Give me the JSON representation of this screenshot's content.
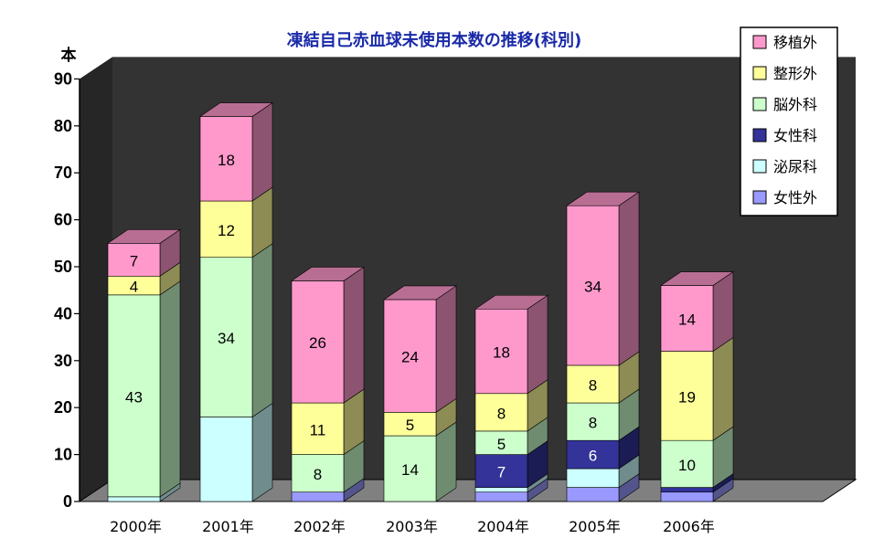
{
  "chart_data": {
    "type": "bar",
    "stacked": true,
    "style": "3d",
    "title": "凍結自己赤血球未使用本数の推移(科別)",
    "ylabel": "本",
    "xlabel": "",
    "ylim": [
      0,
      90
    ],
    "yticks": [
      0,
      10,
      20,
      30,
      40,
      50,
      60,
      70,
      80,
      90
    ],
    "grid": false,
    "legend_position": "top-right",
    "categories": [
      "2000年",
      "2001年",
      "2002年",
      "2003年",
      "2004年",
      "2005年",
      "2006年"
    ],
    "series": [
      {
        "name": "女性外",
        "color": "#9999ff",
        "values": [
          0,
          0,
          2,
          0,
          2,
          3,
          2
        ]
      },
      {
        "name": "泌尿科",
        "color": "#ccffff",
        "values": [
          1,
          18,
          0,
          0,
          1,
          4,
          0
        ]
      },
      {
        "name": "女性科",
        "color": "#333399",
        "values": [
          0,
          0,
          0,
          0,
          7,
          6,
          1
        ]
      },
      {
        "name": "脳外科",
        "color": "#ccffcc",
        "values": [
          43,
          34,
          8,
          14,
          5,
          8,
          10
        ]
      },
      {
        "name": "整形外",
        "color": "#ffff99",
        "values": [
          4,
          12,
          11,
          5,
          8,
          8,
          19
        ]
      },
      {
        "name": "移植外",
        "color": "#ff99cc",
        "values": [
          7,
          18,
          26,
          24,
          18,
          34,
          14
        ]
      }
    ],
    "data_labels": [
      {
        "category": "2000年",
        "series": "脳外科",
        "text": "43"
      },
      {
        "category": "2000年",
        "series": "整形外",
        "text": "4"
      },
      {
        "category": "2000年",
        "series": "移植外",
        "text": "7"
      },
      {
        "category": "2001年",
        "series": "脳外科",
        "text": "34"
      },
      {
        "category": "2001年",
        "series": "整形外",
        "text": "12"
      },
      {
        "category": "2001年",
        "series": "移植外",
        "text": "18"
      },
      {
        "category": "2002年",
        "series": "脳外科",
        "text": "8"
      },
      {
        "category": "2002年",
        "series": "整形外",
        "text": "11"
      },
      {
        "category": "2002年",
        "series": "移植外",
        "text": "26"
      },
      {
        "category": "2003年",
        "series": "脳外科",
        "text": "14"
      },
      {
        "category": "2003年",
        "series": "整形外",
        "text": "5"
      },
      {
        "category": "2003年",
        "series": "移植外",
        "text": "24"
      },
      {
        "category": "2004年",
        "series": "女性科",
        "text": "7"
      },
      {
        "category": "2004年",
        "series": "脳外科",
        "text": "5"
      },
      {
        "category": "2004年",
        "series": "整形外",
        "text": "8"
      },
      {
        "category": "2004年",
        "series": "移植外",
        "text": "18"
      },
      {
        "category": "2005年",
        "series": "女性科",
        "text": "6"
      },
      {
        "category": "2005年",
        "series": "脳外科",
        "text": "8"
      },
      {
        "category": "2005年",
        "series": "整形外",
        "text": "8"
      },
      {
        "category": "2005年",
        "series": "移植外",
        "text": "34"
      },
      {
        "category": "2006年",
        "series": "脳外科",
        "text": "10"
      },
      {
        "category": "2006年",
        "series": "整形外",
        "text": "19"
      },
      {
        "category": "2006年",
        "series": "移植外",
        "text": "14"
      }
    ],
    "legend_order": [
      "移植外",
      "整形外",
      "脳外科",
      "女性科",
      "泌尿科",
      "女性外"
    ],
    "colors": {
      "title": "#1a2aa8",
      "back_wall": "#333333",
      "floor": "#808080"
    }
  }
}
